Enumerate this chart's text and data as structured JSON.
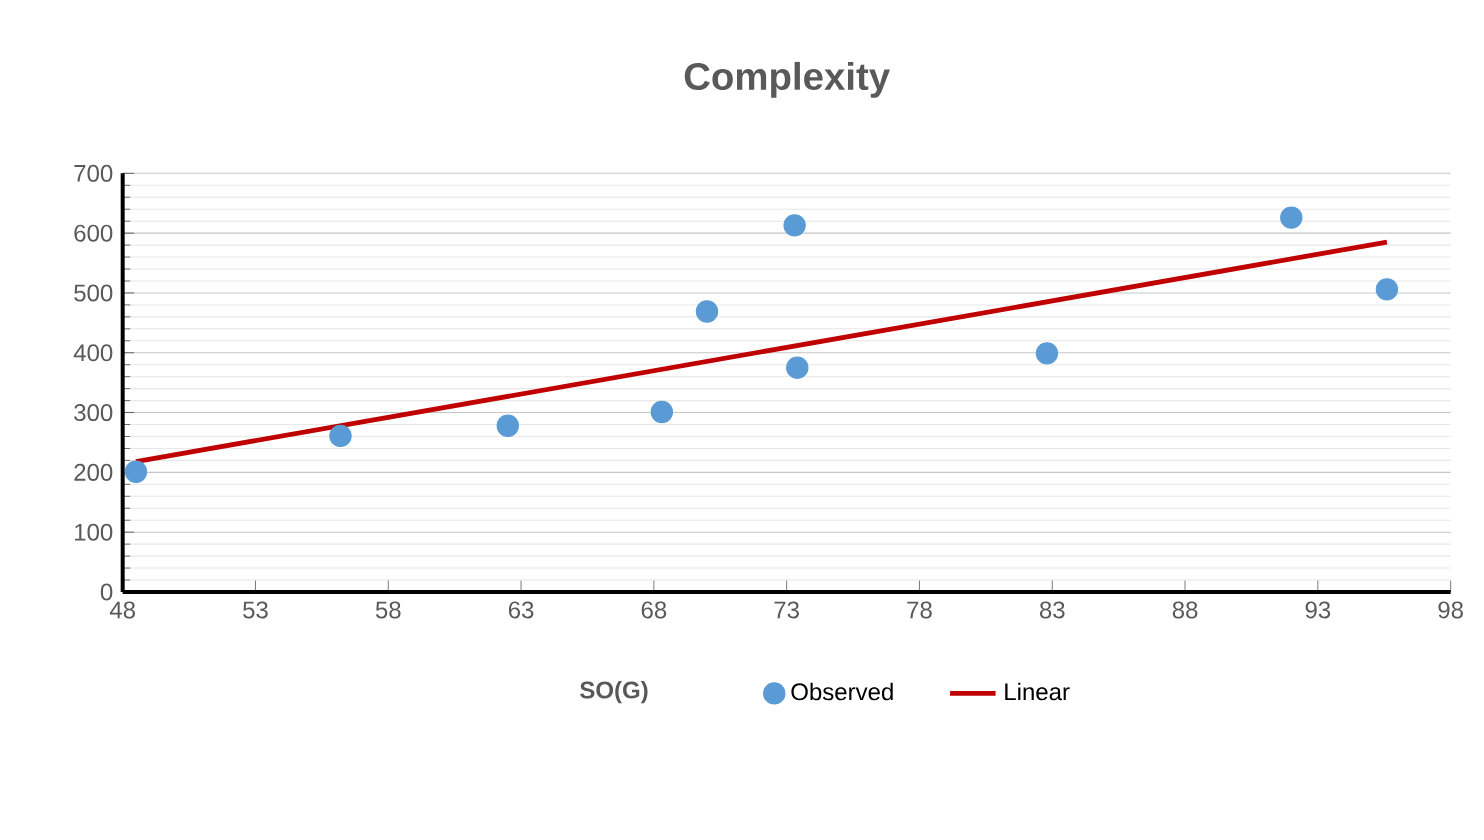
{
  "chart_data": {
    "type": "scatter",
    "title": "Complexity",
    "xlabel": "SO(G)",
    "xlim": [
      48,
      98
    ],
    "xticks": [
      48,
      53,
      58,
      63,
      68,
      73,
      78,
      83,
      88,
      93,
      98
    ],
    "ylim": [
      0,
      700
    ],
    "yticks": [
      0,
      100,
      200,
      300,
      400,
      500,
      600,
      700
    ],
    "grid": "y",
    "legend": "bottom",
    "series": [
      {
        "name": "Observed",
        "marker": "circle",
        "color": "#5b9bd5",
        "x": [
          48.5,
          56.2,
          62.5,
          68.3,
          70.0,
          73.3,
          73.4,
          82.8,
          92.0,
          95.6
        ],
        "values": [
          201,
          261,
          278,
          301,
          469,
          613,
          375,
          399,
          626,
          506
        ]
      },
      {
        "name": "Linear",
        "type": "line",
        "color": "#c00000",
        "line_style": "solid",
        "x": [
          48.5,
          95.6
        ],
        "values": [
          218,
          585
        ]
      }
    ]
  }
}
